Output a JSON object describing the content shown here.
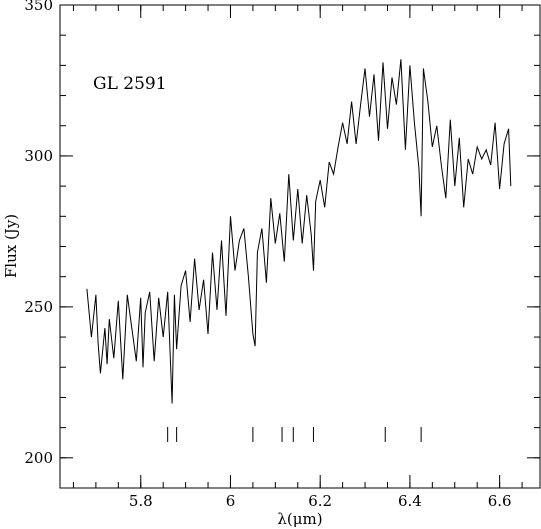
{
  "chart_data": {
    "type": "line",
    "xlabel": "λ(μm)",
    "ylabel": "Flux (Jy)",
    "annotation": "GL 2591",
    "xlim": [
      5.62,
      6.69
    ],
    "ylim": [
      190,
      350
    ],
    "xticks": [
      5.8,
      6.0,
      6.2,
      6.4,
      6.6
    ],
    "xtick_labels": [
      "5.8",
      "6",
      "6.2",
      "6.4",
      "6.6"
    ],
    "yticks": [
      200,
      250,
      300,
      350
    ],
    "ytick_labels": [
      "200",
      "250",
      "300",
      "350"
    ],
    "x_minor_step": 0.05,
    "y_minor_step": 10,
    "line_markers_x": [
      5.86,
      5.88,
      6.05,
      6.115,
      6.14,
      6.185,
      6.345,
      6.425
    ],
    "series": [
      {
        "x": [
          5.68,
          5.69,
          5.7,
          5.705,
          5.71,
          5.72,
          5.725,
          5.73,
          5.74,
          5.75,
          5.76,
          5.77,
          5.78,
          5.79,
          5.8,
          5.805,
          5.81,
          5.82,
          5.83,
          5.84,
          5.85,
          5.86,
          5.87,
          5.875,
          5.88,
          5.89,
          5.9,
          5.91,
          5.92,
          5.93,
          5.94,
          5.95,
          5.96,
          5.97,
          5.98,
          5.99,
          6.0,
          6.01,
          6.02,
          6.03,
          6.04,
          6.05,
          6.055,
          6.06,
          6.07,
          6.08,
          6.09,
          6.1,
          6.11,
          6.12,
          6.13,
          6.14,
          6.15,
          6.16,
          6.17,
          6.18,
          6.185,
          6.19,
          6.2,
          6.21,
          6.22,
          6.23,
          6.24,
          6.25,
          6.26,
          6.27,
          6.28,
          6.29,
          6.3,
          6.31,
          6.32,
          6.33,
          6.34,
          6.35,
          6.36,
          6.37,
          6.38,
          6.39,
          6.4,
          6.41,
          6.42,
          6.425,
          6.43,
          6.44,
          6.45,
          6.46,
          6.47,
          6.48,
          6.49,
          6.5,
          6.51,
          6.52,
          6.53,
          6.54,
          6.55,
          6.56,
          6.57,
          6.58,
          6.59,
          6.6,
          6.61,
          6.62,
          6.625
        ],
        "values": [
          256,
          240,
          254,
          238,
          228,
          243,
          231,
          246,
          233,
          252,
          226,
          254,
          243,
          232,
          253,
          230,
          248,
          255,
          232,
          253,
          240,
          255,
          218,
          254,
          236,
          257,
          262,
          245,
          266,
          249,
          259,
          241,
          268,
          249,
          272,
          247,
          280,
          262,
          272,
          276,
          260,
          241,
          237,
          268,
          276,
          258,
          286,
          271,
          281,
          265,
          294,
          272,
          289,
          271,
          287,
          274,
          262,
          285,
          292,
          283,
          298,
          294,
          303,
          311,
          304,
          318,
          304,
          317,
          329,
          313,
          327,
          305,
          331,
          309,
          326,
          317,
          332,
          302,
          330,
          311,
          296,
          280,
          329,
          318,
          303,
          310,
          297,
          286,
          312,
          290,
          306,
          283,
          299,
          294,
          303,
          299,
          302,
          297,
          311,
          289,
          304,
          309,
          290
        ]
      }
    ]
  }
}
